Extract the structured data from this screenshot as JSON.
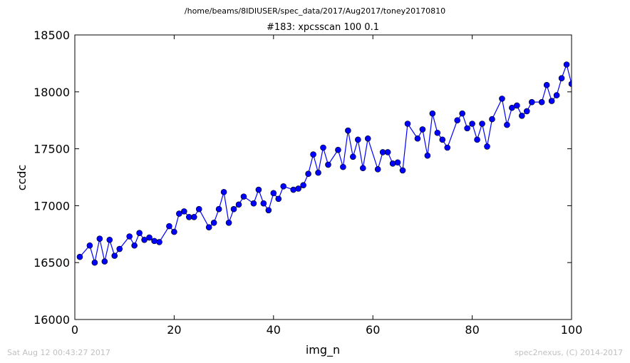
{
  "header": {
    "path": "/home/beams/8IDIUSER/spec_data/2017/Aug2017/toney20170810"
  },
  "footer": {
    "timestamp": "Sat Aug 12 00:43:27 2017",
    "credit": "spec2nexus, (C) 2014-2017"
  },
  "chart_data": {
    "type": "line",
    "title": "#183: xpcsscan 100 0.1",
    "xlabel": "img_n",
    "ylabel": "ccdc",
    "xlim": [
      0,
      100
    ],
    "ylim": [
      16000,
      18500
    ],
    "xticks": [
      0,
      20,
      40,
      60,
      80,
      100
    ],
    "yticks": [
      16000,
      16500,
      17000,
      17500,
      18000,
      18500
    ],
    "grid": false,
    "marker": "circle",
    "color": "#0000ff",
    "series": [
      {
        "x": [
          1,
          3,
          4,
          5,
          6,
          7,
          8,
          9,
          11,
          12,
          13,
          14,
          15,
          16,
          17,
          19,
          20,
          21,
          22,
          23,
          24,
          25,
          27,
          28,
          29,
          30,
          31,
          32,
          33,
          34,
          36,
          37,
          38,
          39,
          40,
          41,
          42,
          44,
          45,
          46,
          47,
          48,
          49,
          50,
          51,
          53,
          54,
          55,
          56,
          57,
          58,
          59,
          61,
          62,
          63,
          64,
          65,
          66,
          67,
          69,
          70,
          71,
          72,
          73,
          74,
          75,
          77,
          78,
          79,
          80,
          81,
          82,
          83,
          84,
          86,
          87,
          88,
          89,
          90,
          91,
          92,
          94,
          95,
          96,
          97,
          98,
          99,
          100
        ],
        "y": [
          16550,
          16650,
          16500,
          16710,
          16510,
          16700,
          16560,
          16620,
          16730,
          16650,
          16760,
          16700,
          16720,
          16690,
          16680,
          16820,
          16770,
          16930,
          16950,
          16900,
          16900,
          16970,
          16810,
          16850,
          16970,
          17120,
          16850,
          16970,
          17010,
          17080,
          17020,
          17140,
          17020,
          16960,
          17110,
          17060,
          17170,
          17140,
          17150,
          17180,
          17280,
          17450,
          17290,
          17510,
          17360,
          17490,
          17340,
          17660,
          17430,
          17580,
          17330,
          17590,
          17320,
          17470,
          17470,
          17370,
          17380,
          17310,
          17720,
          17590,
          17670,
          17440,
          17810,
          17640,
          17580,
          17510,
          17750,
          17810,
          17680,
          17720,
          17580,
          17720,
          17520,
          17760,
          17940,
          17710,
          17860,
          17880,
          17790,
          17830,
          17910,
          17910,
          18060,
          17920,
          17970,
          18120,
          18240,
          18070
        ]
      }
    ]
  }
}
